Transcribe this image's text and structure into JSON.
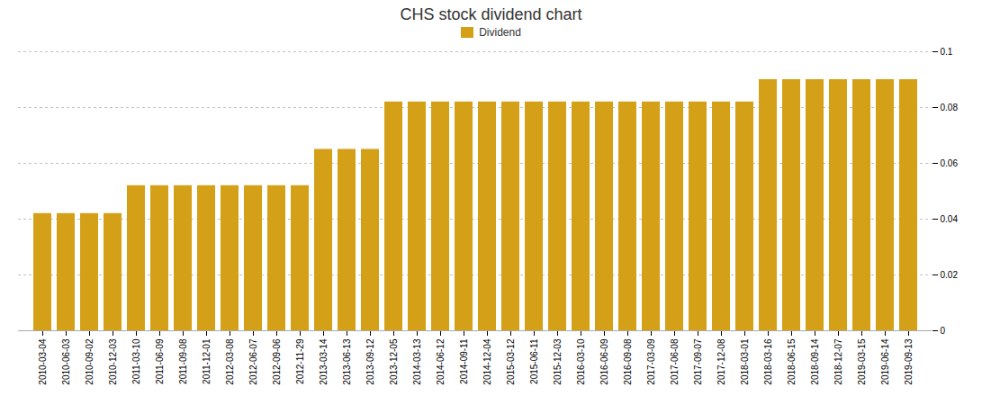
{
  "chart_data": {
    "type": "bar",
    "title": "CHS stock dividend chart",
    "categories": [
      "2010-03-04",
      "2010-06-03",
      "2010-09-02",
      "2010-12-03",
      "2011-03-10",
      "2011-06-09",
      "2011-09-08",
      "2011-12-01",
      "2012-03-08",
      "2012-06-07",
      "2012-09-06",
      "2012-11-29",
      "2013-03-14",
      "2013-06-13",
      "2013-09-12",
      "2013-12-05",
      "2014-03-13",
      "2014-06-12",
      "2014-09-11",
      "2014-12-04",
      "2015-03-12",
      "2015-06-11",
      "2015-12-03",
      "2016-03-10",
      "2016-06-09",
      "2016-09-08",
      "2017-03-09",
      "2017-06-08",
      "2017-09-07",
      "2017-12-08",
      "2018-03-01",
      "2018-03-16",
      "2018-06-15",
      "2018-09-14",
      "2018-12-07",
      "2019-03-15",
      "2019-06-14",
      "2019-09-13"
    ],
    "series": [
      {
        "name": "Dividend",
        "color": "#D4A017",
        "values": [
          0.042,
          0.042,
          0.042,
          0.042,
          0.052,
          0.052,
          0.052,
          0.052,
          0.052,
          0.052,
          0.052,
          0.052,
          0.065,
          0.065,
          0.065,
          0.082,
          0.082,
          0.082,
          0.082,
          0.082,
          0.082,
          0.082,
          0.082,
          0.082,
          0.082,
          0.082,
          0.082,
          0.082,
          0.082,
          0.082,
          0.082,
          0.09,
          0.09,
          0.09,
          0.09,
          0.09,
          0.09,
          0.09
        ]
      }
    ],
    "ylim": [
      0,
      0.1
    ],
    "yticks": [
      0,
      0.02,
      0.04,
      0.06,
      0.08,
      0.1
    ],
    "grid": true,
    "legend": "top"
  }
}
